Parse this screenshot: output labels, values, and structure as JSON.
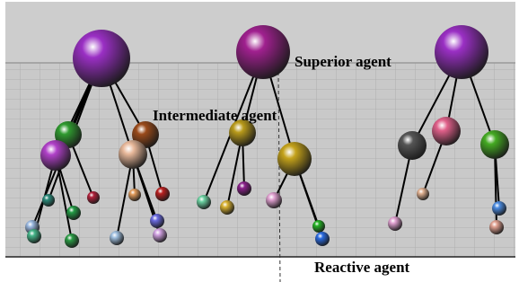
{
  "labels": {
    "superior": "Superior agent",
    "intermediate": "Intermediate agent",
    "reactive": "Reactive agent"
  }
}
